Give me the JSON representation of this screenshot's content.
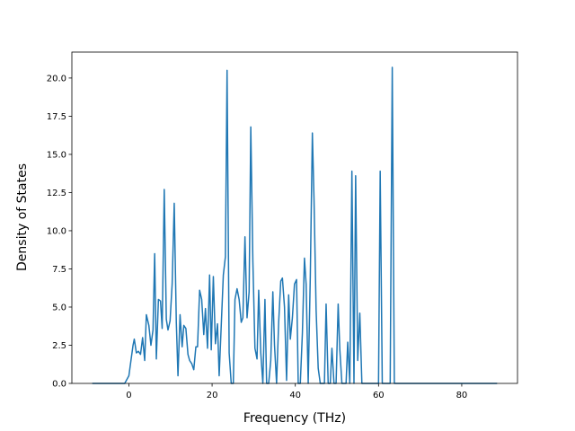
{
  "chart_data": {
    "type": "line",
    "x_label": "Frequency (THz)",
    "y_label": "Density of States",
    "x": [
      -8.8,
      -1,
      0,
      0.5,
      1,
      1.3,
      1.8,
      2.3,
      2.8,
      3.3,
      3.8,
      4.2,
      4.8,
      5.3,
      5.8,
      6.2,
      6.6,
      7.1,
      7.6,
      8.0,
      8.5,
      9.0,
      9.4,
      9.9,
      10.4,
      10.9,
      11.4,
      11.8,
      12.3,
      12.8,
      13.2,
      13.7,
      14.2,
      14.6,
      15.1,
      15.6,
      16.1,
      16.5,
      17.0,
      17.5,
      18.0,
      18.4,
      18.9,
      19.4,
      19.8,
      20.3,
      20.8,
      21.3,
      21.7,
      22.2,
      22.7,
      23.2,
      23.6,
      24.1,
      24.6,
      25.1,
      25.5,
      26.0,
      26.5,
      27.0,
      27.4,
      27.9,
      28.4,
      28.9,
      29.3,
      29.8,
      30.3,
      30.8,
      31.2,
      31.7,
      32.2,
      32.7,
      33.1,
      33.6,
      34.1,
      34.6,
      35.0,
      35.5,
      36.0,
      36.5,
      36.9,
      37.4,
      37.9,
      38.4,
      38.8,
      39.3,
      39.8,
      40.3,
      40.7,
      41.2,
      41.7,
      42.2,
      42.6,
      43.1,
      43.6,
      44.1,
      44.5,
      45.0,
      45.5,
      46.0,
      47.0,
      47.4,
      47.9,
      48.4,
      48.8,
      49.3,
      49.8,
      50.3,
      50.7,
      51.2,
      52.2,
      52.6,
      53.1,
      53.6,
      54.1,
      54.5,
      55.0,
      55.5,
      56.0,
      60.0,
      60.4,
      60.9,
      62.8,
      63.3,
      63.8,
      88.5
    ],
    "series": [
      {
        "color": "#1f77b4",
        "values": [
          0,
          0,
          0.5,
          1.5,
          2.5,
          2.9,
          2.0,
          2.1,
          1.9,
          3.0,
          1.5,
          4.5,
          3.8,
          2.5,
          3.5,
          8.5,
          1.6,
          5.5,
          5.4,
          3.6,
          12.7,
          4.2,
          3.5,
          4.1,
          6.5,
          11.8,
          4.0,
          0.5,
          4.5,
          2.4,
          3.8,
          3.6,
          1.9,
          1.5,
          1.3,
          0.9,
          2.4,
          2.4,
          6.1,
          5.5,
          3.2,
          4.9,
          2.3,
          7.1,
          2.2,
          7.0,
          2.6,
          3.9,
          0.5,
          3.8,
          7.1,
          8.3,
          20.5,
          2.0,
          0,
          0,
          5.5,
          6.2,
          5.5,
          4.0,
          4.3,
          9.6,
          4.3,
          6.0,
          16.8,
          8.0,
          2.3,
          1.6,
          6.1,
          2.0,
          0,
          5.5,
          0,
          0,
          1.5,
          6.0,
          2.5,
          0,
          4.0,
          6.7,
          6.9,
          5.0,
          0.2,
          5.8,
          2.9,
          4.3,
          6.5,
          6.8,
          0,
          0,
          3.3,
          8.2,
          6.5,
          0,
          7.0,
          16.4,
          12.0,
          4.8,
          1.0,
          0,
          0,
          5.2,
          0,
          0,
          2.3,
          0,
          0,
          5.2,
          2.2,
          0,
          0,
          2.7,
          0,
          13.9,
          0,
          13.6,
          1.5,
          4.6,
          0,
          0,
          13.9,
          0,
          0,
          20.7,
          0,
          0
        ]
      }
    ],
    "xlim": [
      -13.7,
      93.4
    ],
    "ylim": [
      0,
      21.7
    ],
    "xticks": [
      0,
      20,
      40,
      60,
      80
    ],
    "yticks": [
      {
        "value": 0,
        "label": "0.0"
      },
      2.5,
      {
        "value": 5,
        "label": "5.0"
      },
      7.5,
      {
        "value": 10,
        "label": "10.0"
      },
      12.5,
      {
        "value": 15,
        "label": "15.0"
      },
      17.5,
      {
        "value": 20,
        "label": "20.0"
      }
    ]
  }
}
